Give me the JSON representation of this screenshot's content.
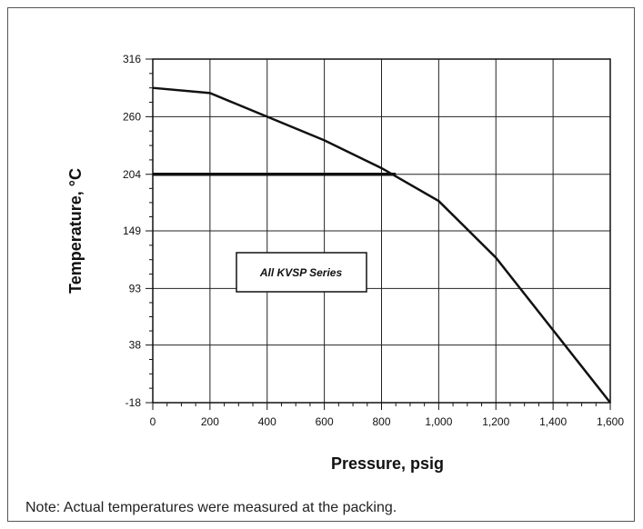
{
  "note": "Note: Actual temperatures were measured at the packing.",
  "chart_data": {
    "type": "line",
    "title": "",
    "xlabel": "Pressure, psig",
    "ylabel": "Temperature,  °C",
    "xlim": [
      0,
      1600
    ],
    "ylim": [
      -18,
      316
    ],
    "x_ticks": [
      0,
      200,
      400,
      600,
      800,
      1000,
      1200,
      1400,
      1600
    ],
    "x_tick_labels": [
      "0",
      "200",
      "400",
      "600",
      "800",
      "1,000",
      "1,200",
      "1,400",
      "1,600"
    ],
    "y_ticks": [
      -18,
      38,
      93,
      149,
      204,
      260,
      316
    ],
    "y_tick_labels": [
      "-18",
      "38",
      "93",
      "149",
      "204",
      "260",
      "316"
    ],
    "grid": true,
    "annotation": "All KVSP Series",
    "series": [
      {
        "x": [
          0,
          200,
          400,
          600,
          800,
          1000,
          1200,
          1600
        ],
        "y": [
          288,
          283,
          260,
          237,
          210,
          178,
          123,
          -18
        ]
      },
      {
        "x": [
          0,
          850
        ],
        "y": [
          204,
          204
        ]
      }
    ]
  }
}
